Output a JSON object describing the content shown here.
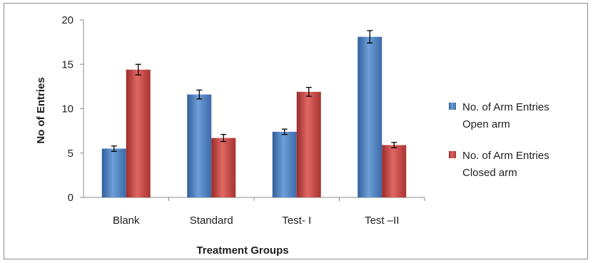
{
  "chart_data": {
    "type": "bar",
    "title": "",
    "xlabel": "Treatment Groups",
    "ylabel": "No of Entries",
    "ylim": [
      0,
      20
    ],
    "yticks": [
      0,
      5,
      10,
      15,
      20
    ],
    "categories": [
      "Blank",
      "Standard",
      "Test- I",
      "Test –II"
    ],
    "series": [
      {
        "name_lines": [
          "No. of Arm Entries",
          "Open arm"
        ],
        "color": "#4f81bd",
        "values": [
          5.5,
          11.6,
          7.4,
          18.1
        ],
        "errors": [
          0.3,
          0.5,
          0.3,
          0.7
        ]
      },
      {
        "name_lines": [
          "No. of Arm Entries",
          "Closed arm"
        ],
        "color": "#c0504d",
        "values": [
          14.4,
          6.7,
          11.9,
          5.9
        ],
        "errors": [
          0.6,
          0.4,
          0.5,
          0.3
        ]
      }
    ],
    "grid": false,
    "legend_position": "right"
  }
}
